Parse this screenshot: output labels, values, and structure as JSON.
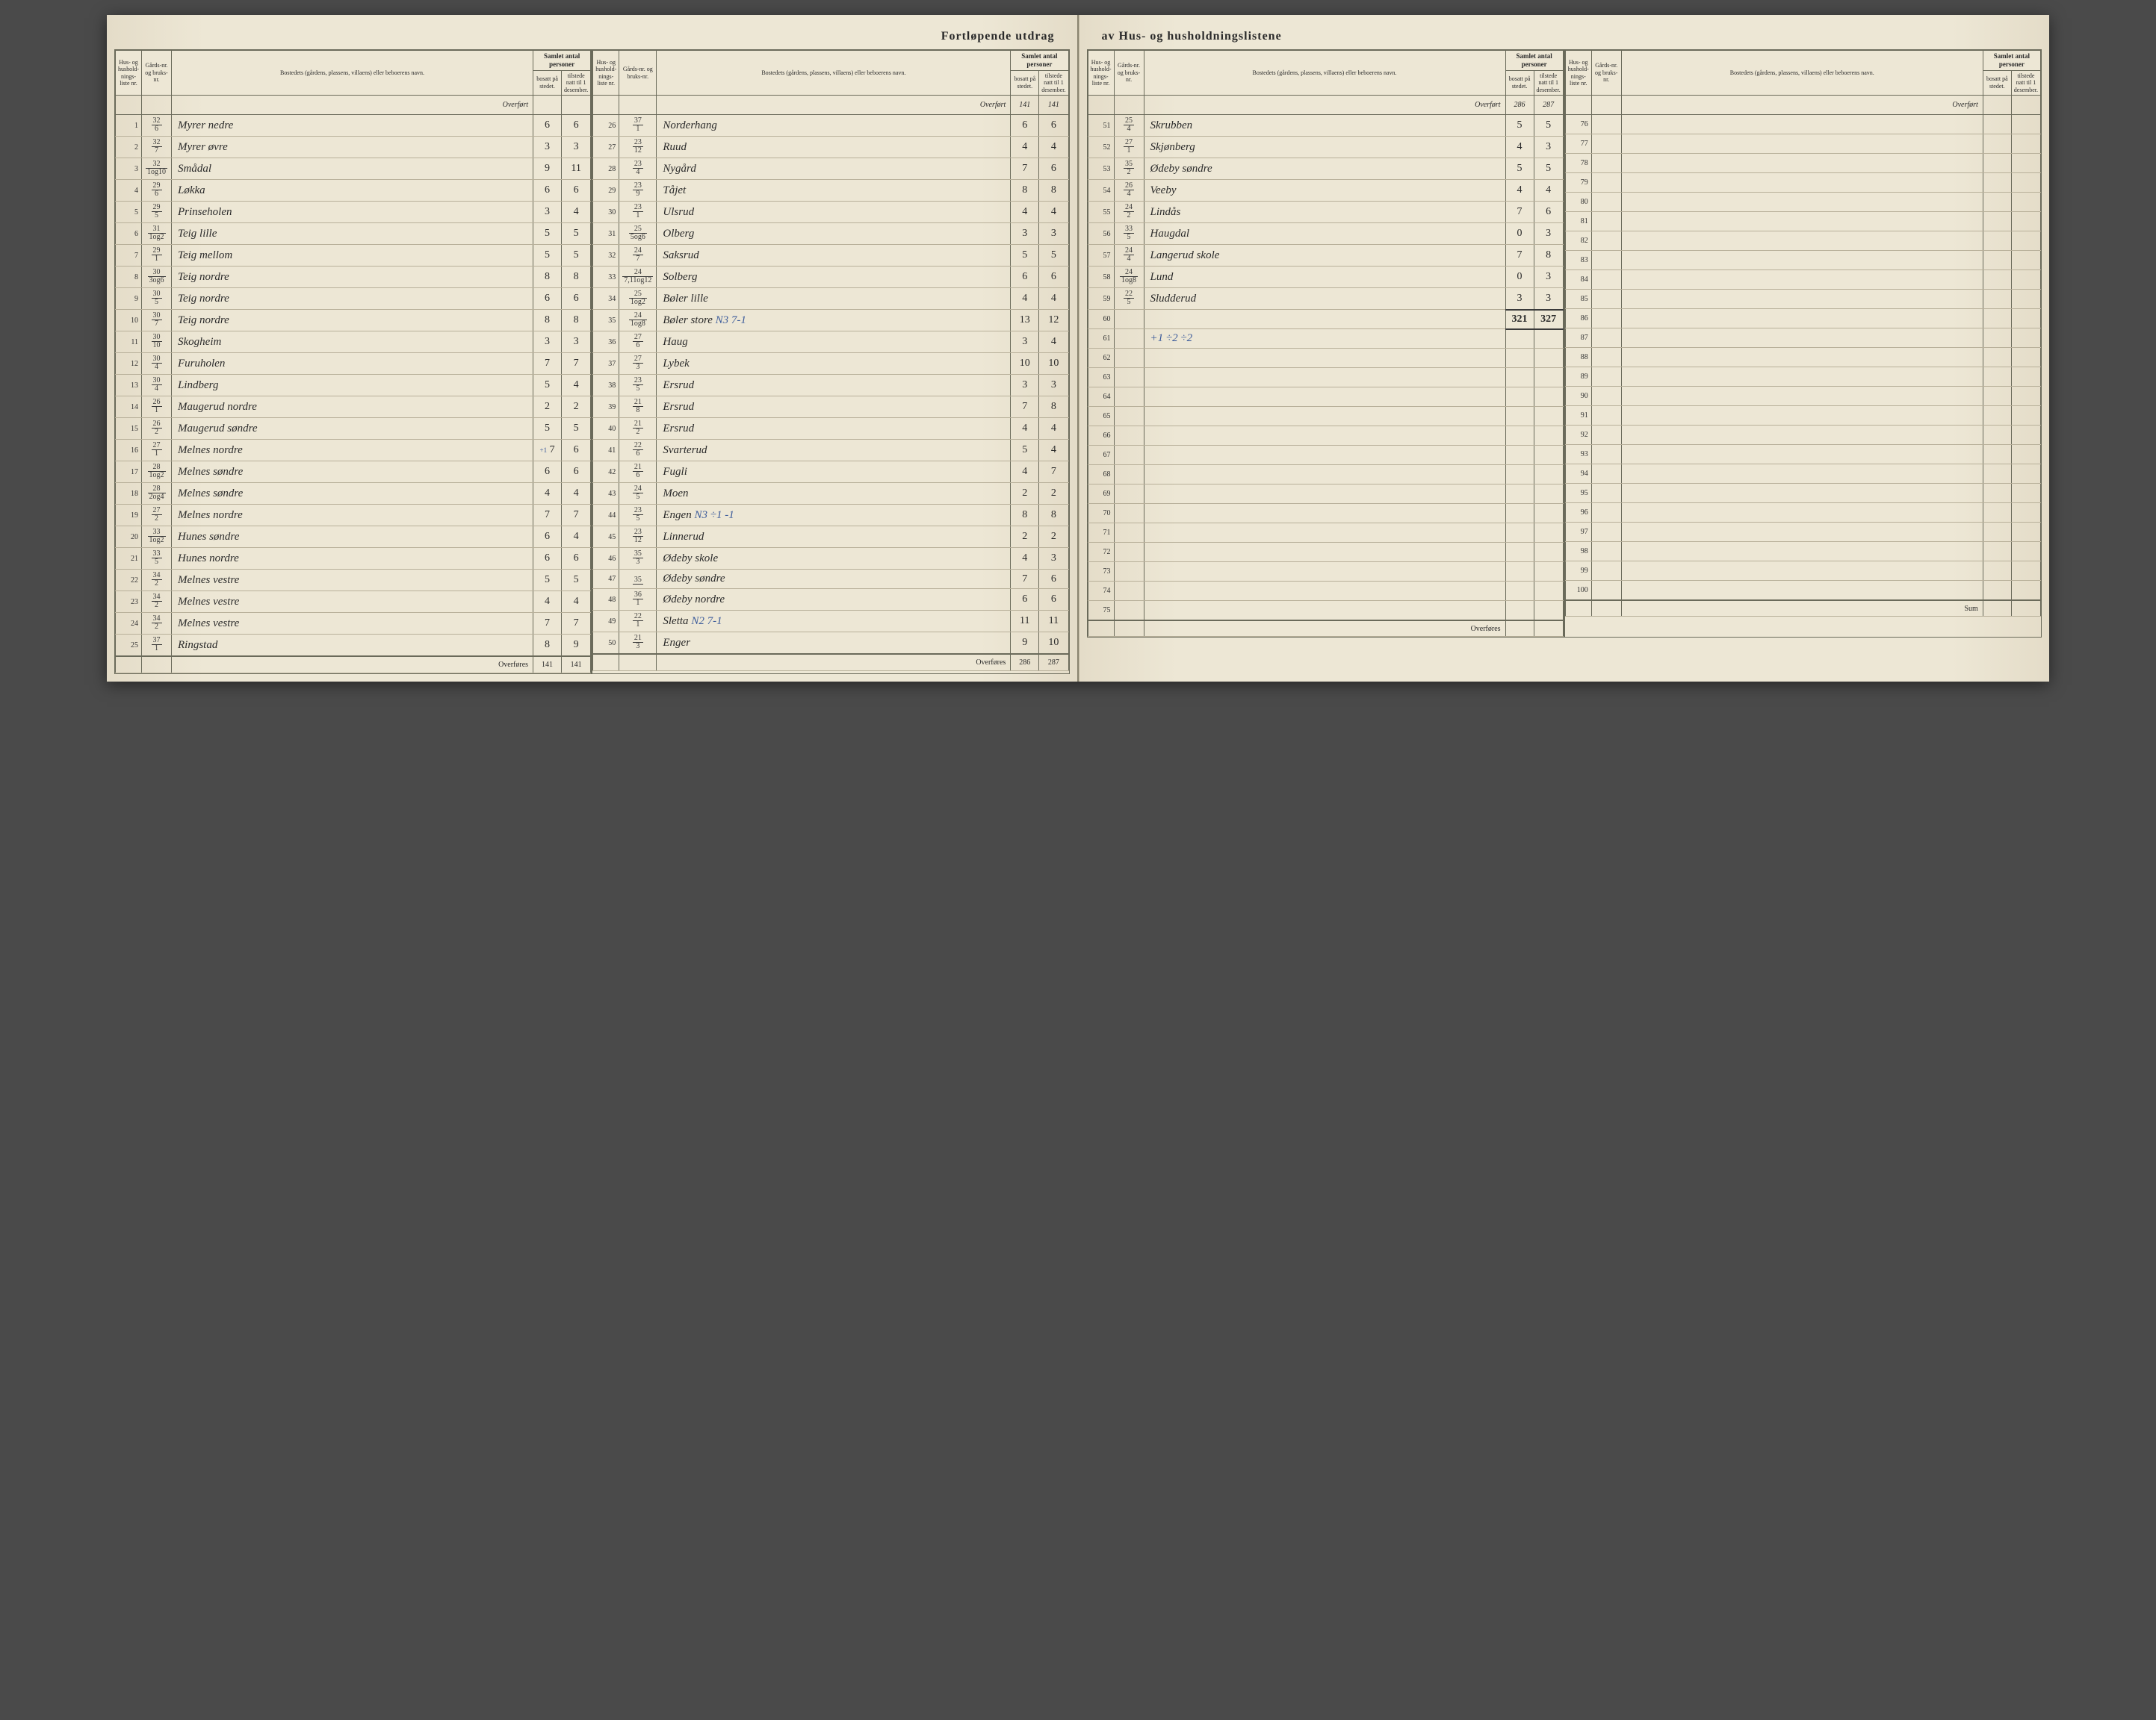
{
  "title_left": "Fortløpende utdrag",
  "title_right": "av Hus- og husholdningslistene",
  "headers": {
    "liste": "Hus- og hushold-nings-liste nr.",
    "gard": "Gårds-nr. og bruks-nr.",
    "bosted": "Bostedets (gårdens, plassens, villaens) eller beboerens navn.",
    "samlet": "Samlet antal personer",
    "bosatt": "bosatt på stedet.",
    "tilstede": "tilstede natt til 1 desember."
  },
  "overfort_label": "Overført",
  "overfores_label": "Overføres",
  "sum_label": "Sum",
  "sections": [
    {
      "overfort": {
        "bosatt": "",
        "tilstede": ""
      },
      "rows": [
        {
          "n": "1",
          "g": "32/6",
          "name": "Myrer nedre",
          "b": "6",
          "t": "6"
        },
        {
          "n": "2",
          "g": "32/7",
          "name": "Myrer øvre",
          "b": "3",
          "t": "3"
        },
        {
          "n": "3",
          "g": "32/1og10",
          "name": "Smådal",
          "b": "9",
          "t": "11"
        },
        {
          "n": "4",
          "g": "29/6",
          "name": "Løkka",
          "b": "6",
          "t": "6"
        },
        {
          "n": "5",
          "g": "29/5",
          "name": "Prinseholen",
          "b": "3",
          "t": "4"
        },
        {
          "n": "6",
          "g": "31/1og2",
          "name": "Teig lille",
          "b": "5",
          "t": "5"
        },
        {
          "n": "7",
          "g": "29/1",
          "name": "Teig mellom",
          "b": "5",
          "t": "5"
        },
        {
          "n": "8",
          "g": "30/3og6",
          "name": "Teig nordre",
          "b": "8",
          "t": "8"
        },
        {
          "n": "9",
          "g": "30/5",
          "name": "Teig nordre",
          "b": "6",
          "t": "6"
        },
        {
          "n": "10",
          "g": "30/7",
          "name": "Teig nordre",
          "b": "8",
          "t": "8"
        },
        {
          "n": "11",
          "g": "30/10",
          "name": "Skogheim",
          "b": "3",
          "t": "3"
        },
        {
          "n": "12",
          "g": "30/4",
          "name": "Furuholen",
          "b": "7",
          "t": "7"
        },
        {
          "n": "13",
          "g": "30/4",
          "name": "Lindberg",
          "b": "5",
          "t": "4"
        },
        {
          "n": "14",
          "g": "26/1",
          "name": "Maugerud nordre",
          "b": "2",
          "t": "2"
        },
        {
          "n": "15",
          "g": "26/2",
          "name": "Maugerud søndre",
          "b": "5",
          "t": "5"
        },
        {
          "n": "16",
          "g": "27/1",
          "name": "Melnes nordre",
          "b": "7",
          "t": "6",
          "note": "+1"
        },
        {
          "n": "17",
          "g": "28/1og2",
          "name": "Melnes søndre",
          "b": "6",
          "t": "6"
        },
        {
          "n": "18",
          "g": "28/2og4",
          "name": "Melnes søndre",
          "b": "4",
          "t": "4"
        },
        {
          "n": "19",
          "g": "27/2",
          "name": "Melnes nordre",
          "b": "7",
          "t": "7"
        },
        {
          "n": "20",
          "g": "33/1og2",
          "name": "Hunes søndre",
          "b": "6",
          "t": "4"
        },
        {
          "n": "21",
          "g": "33/5",
          "name": "Hunes nordre",
          "b": "6",
          "t": "6"
        },
        {
          "n": "22",
          "g": "34/2",
          "name": "Melnes vestre",
          "b": "5",
          "t": "5"
        },
        {
          "n": "23",
          "g": "34/2",
          "name": "Melnes vestre",
          "b": "4",
          "t": "4"
        },
        {
          "n": "24",
          "g": "34/2",
          "name": "Melnes vestre",
          "b": "7",
          "t": "7"
        },
        {
          "n": "25",
          "g": "37/1",
          "name": "Ringstad",
          "b": "8",
          "t": "9"
        }
      ],
      "overfores": {
        "bosatt": "141",
        "tilstede": "141"
      }
    },
    {
      "overfort": {
        "bosatt": "141",
        "tilstede": "141"
      },
      "rows": [
        {
          "n": "26",
          "g": "37/1",
          "name": "Norderhang",
          "b": "6",
          "t": "6"
        },
        {
          "n": "27",
          "g": "23/12",
          "name": "Ruud",
          "b": "4",
          "t": "4"
        },
        {
          "n": "28",
          "g": "23/4",
          "name": "Nygård",
          "b": "7",
          "t": "6"
        },
        {
          "n": "29",
          "g": "23/9",
          "name": "Tåjet",
          "b": "8",
          "t": "8"
        },
        {
          "n": "30",
          "g": "23/1",
          "name": "Ulsrud",
          "b": "4",
          "t": "4"
        },
        {
          "n": "31",
          "g": "25/5og6",
          "name": "Olberg",
          "b": "3",
          "t": "3"
        },
        {
          "n": "32",
          "g": "24/7",
          "name": "Saksrud",
          "b": "5",
          "t": "5"
        },
        {
          "n": "33",
          "g": "24/7,11og12",
          "name": "Solberg",
          "b": "6",
          "t": "6"
        },
        {
          "n": "34",
          "g": "25/1og2",
          "name": "Bøler lille",
          "b": "4",
          "t": "4"
        },
        {
          "n": "35",
          "g": "24/1og8",
          "name": "Bøler store",
          "b": "13",
          "t": "12",
          "blue": "N3 7-1"
        },
        {
          "n": "36",
          "g": "27/6",
          "name": "Haug",
          "b": "3",
          "t": "4"
        },
        {
          "n": "37",
          "g": "27/3",
          "name": "Lybek",
          "b": "10",
          "t": "10"
        },
        {
          "n": "38",
          "g": "23/5",
          "name": "Ersrud",
          "b": "3",
          "t": "3"
        },
        {
          "n": "39",
          "g": "21/8",
          "name": "Ersrud",
          "b": "7",
          "t": "8"
        },
        {
          "n": "40",
          "g": "21/2",
          "name": "Ersrud",
          "b": "4",
          "t": "4"
        },
        {
          "n": "41",
          "g": "22/6",
          "name": "Svarterud",
          "b": "5",
          "t": "4"
        },
        {
          "n": "42",
          "g": "21/6",
          "name": "Fugli",
          "b": "4",
          "t": "7"
        },
        {
          "n": "43",
          "g": "24/5",
          "name": "Moen",
          "b": "2",
          "t": "2"
        },
        {
          "n": "44",
          "g": "23/5",
          "name": "Engen",
          "b": "8",
          "t": "8",
          "blue": "N3 ÷1 -1"
        },
        {
          "n": "45",
          "g": "23/12",
          "name": "Linnerud",
          "b": "2",
          "t": "2"
        },
        {
          "n": "46",
          "g": "35/3",
          "name": "Ødeby skole",
          "b": "4",
          "t": "3"
        },
        {
          "n": "47",
          "g": "35/",
          "name": "Ødeby søndre",
          "b": "7",
          "t": "6"
        },
        {
          "n": "48",
          "g": "36/1",
          "name": "Ødeby nordre",
          "b": "6",
          "t": "6"
        },
        {
          "n": "49",
          "g": "22/1",
          "name": "Sletta",
          "b": "11",
          "t": "11",
          "blue": "N2 7-1"
        },
        {
          "n": "50",
          "g": "21/3",
          "name": "Enger",
          "b": "9",
          "t": "10"
        }
      ],
      "overfores": {
        "bosatt": "286",
        "tilstede": "287"
      }
    },
    {
      "overfort": {
        "bosatt": "286",
        "tilstede": "287"
      },
      "rows": [
        {
          "n": "51",
          "g": "25/4",
          "name": "Skrubben",
          "b": "5",
          "t": "5"
        },
        {
          "n": "52",
          "g": "27/1",
          "name": "Skjønberg",
          "b": "4",
          "t": "3"
        },
        {
          "n": "53",
          "g": "35/2",
          "name": "Ødeby søndre",
          "b": "5",
          "t": "5"
        },
        {
          "n": "54",
          "g": "26/4",
          "name": "Veeby",
          "b": "4",
          "t": "4"
        },
        {
          "n": "55",
          "g": "24/2",
          "name": "Lindås",
          "b": "7",
          "t": "6"
        },
        {
          "n": "56",
          "g": "33/5",
          "name": "Haugdal",
          "b": "0",
          "t": "3"
        },
        {
          "n": "57",
          "g": "24/4",
          "name": "Langerud skole",
          "b": "7",
          "t": "8"
        },
        {
          "n": "58",
          "g": "24/1og8",
          "name": "Lund",
          "b": "0",
          "t": "3"
        },
        {
          "n": "59",
          "g": "22/5",
          "name": "Sludderud",
          "b": "3",
          "t": "3"
        },
        {
          "n": "60",
          "g": "",
          "name": "",
          "b": "321",
          "t": "327",
          "total": true
        },
        {
          "n": "61",
          "g": "",
          "name": "",
          "b": "",
          "t": "",
          "blue": "+1 ÷2 ÷2"
        },
        {
          "n": "62",
          "g": "",
          "name": "",
          "b": "",
          "t": ""
        },
        {
          "n": "63",
          "g": "",
          "name": "",
          "b": "",
          "t": ""
        },
        {
          "n": "64",
          "g": "",
          "name": "",
          "b": "",
          "t": ""
        },
        {
          "n": "65",
          "g": "",
          "name": "",
          "b": "",
          "t": ""
        },
        {
          "n": "66",
          "g": "",
          "name": "",
          "b": "",
          "t": ""
        },
        {
          "n": "67",
          "g": "",
          "name": "",
          "b": "",
          "t": ""
        },
        {
          "n": "68",
          "g": "",
          "name": "",
          "b": "",
          "t": ""
        },
        {
          "n": "69",
          "g": "",
          "name": "",
          "b": "",
          "t": ""
        },
        {
          "n": "70",
          "g": "",
          "name": "",
          "b": "",
          "t": ""
        },
        {
          "n": "71",
          "g": "",
          "name": "",
          "b": "",
          "t": ""
        },
        {
          "n": "72",
          "g": "",
          "name": "",
          "b": "",
          "t": ""
        },
        {
          "n": "73",
          "g": "",
          "name": "",
          "b": "",
          "t": ""
        },
        {
          "n": "74",
          "g": "",
          "name": "",
          "b": "",
          "t": ""
        },
        {
          "n": "75",
          "g": "",
          "name": "",
          "b": "",
          "t": ""
        }
      ],
      "overfores": {
        "bosatt": "",
        "tilstede": ""
      }
    },
    {
      "overfort": {
        "bosatt": "",
        "tilstede": ""
      },
      "rows": [
        {
          "n": "76",
          "g": "",
          "name": "",
          "b": "",
          "t": ""
        },
        {
          "n": "77",
          "g": "",
          "name": "",
          "b": "",
          "t": ""
        },
        {
          "n": "78",
          "g": "",
          "name": "",
          "b": "",
          "t": ""
        },
        {
          "n": "79",
          "g": "",
          "name": "",
          "b": "",
          "t": ""
        },
        {
          "n": "80",
          "g": "",
          "name": "",
          "b": "",
          "t": ""
        },
        {
          "n": "81",
          "g": "",
          "name": "",
          "b": "",
          "t": ""
        },
        {
          "n": "82",
          "g": "",
          "name": "",
          "b": "",
          "t": ""
        },
        {
          "n": "83",
          "g": "",
          "name": "",
          "b": "",
          "t": ""
        },
        {
          "n": "84",
          "g": "",
          "name": "",
          "b": "",
          "t": ""
        },
        {
          "n": "85",
          "g": "",
          "name": "",
          "b": "",
          "t": ""
        },
        {
          "n": "86",
          "g": "",
          "name": "",
          "b": "",
          "t": ""
        },
        {
          "n": "87",
          "g": "",
          "name": "",
          "b": "",
          "t": ""
        },
        {
          "n": "88",
          "g": "",
          "name": "",
          "b": "",
          "t": ""
        },
        {
          "n": "89",
          "g": "",
          "name": "",
          "b": "",
          "t": ""
        },
        {
          "n": "90",
          "g": "",
          "name": "",
          "b": "",
          "t": ""
        },
        {
          "n": "91",
          "g": "",
          "name": "",
          "b": "",
          "t": ""
        },
        {
          "n": "92",
          "g": "",
          "name": "",
          "b": "",
          "t": ""
        },
        {
          "n": "93",
          "g": "",
          "name": "",
          "b": "",
          "t": ""
        },
        {
          "n": "94",
          "g": "",
          "name": "",
          "b": "",
          "t": ""
        },
        {
          "n": "95",
          "g": "",
          "name": "",
          "b": "",
          "t": ""
        },
        {
          "n": "96",
          "g": "",
          "name": "",
          "b": "",
          "t": ""
        },
        {
          "n": "97",
          "g": "",
          "name": "",
          "b": "",
          "t": ""
        },
        {
          "n": "98",
          "g": "",
          "name": "",
          "b": "",
          "t": ""
        },
        {
          "n": "99",
          "g": "",
          "name": "",
          "b": "",
          "t": ""
        },
        {
          "n": "100",
          "g": "",
          "name": "",
          "b": "",
          "t": ""
        }
      ],
      "overfores": {
        "bosatt": "",
        "tilstede": "",
        "sum": true
      }
    }
  ]
}
